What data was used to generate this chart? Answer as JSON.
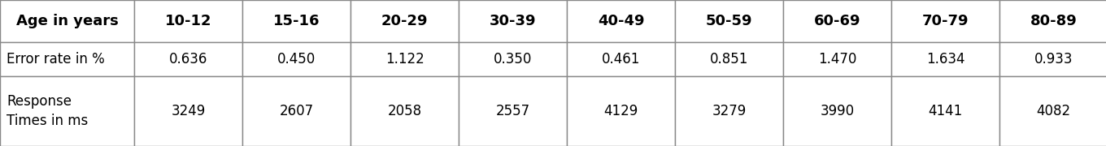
{
  "col_header": [
    "Age in years",
    "10-12",
    "15-16",
    "20-29",
    "30-39",
    "40-49",
    "50-59",
    "60-69",
    "70-79",
    "80-89"
  ],
  "row1_label": "Error rate in %",
  "row1_values": [
    "0.636",
    "0.450",
    "1.122",
    "0.350",
    "0.461",
    "0.851",
    "1.470",
    "1.634",
    "0.933"
  ],
  "row2_label": "Response\nTimes in ms",
  "row2_values": [
    "3249",
    "2607",
    "2058",
    "2557",
    "4129",
    "3279",
    "3990",
    "4141",
    "4082"
  ],
  "header_bg": "#ffffff",
  "row1_bg": "#ffffff",
  "row2_bg": "#ffffff",
  "border_color": "#888888",
  "text_color": "#000000",
  "font_size": 12,
  "header_font_size": 13
}
